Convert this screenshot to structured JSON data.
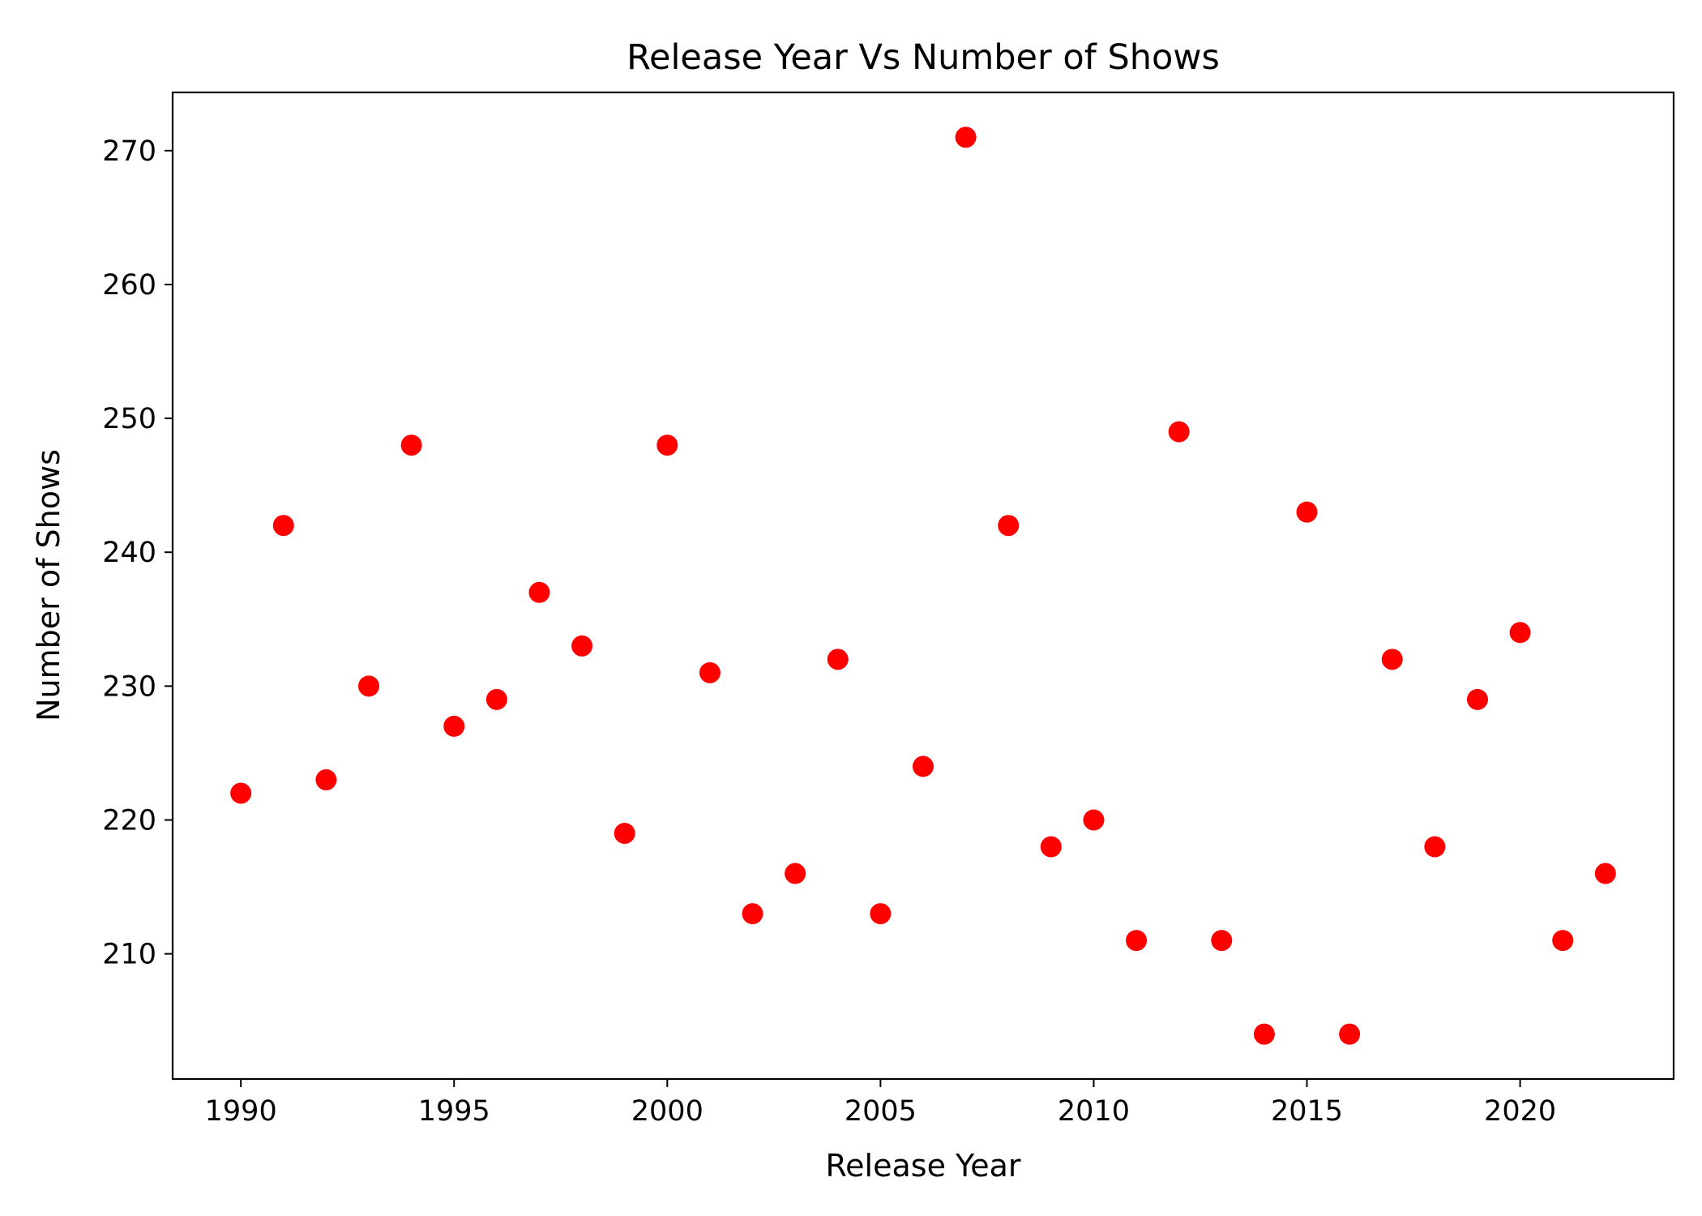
{
  "chart_data": {
    "type": "scatter",
    "title": "Release Year Vs Number of Shows",
    "xlabel": "Release Year",
    "ylabel": "Number of Shows",
    "xlim": [
      1988.4,
      2023.6
    ],
    "ylim": [
      200.65,
      274.35
    ],
    "xticks": [
      1990,
      1995,
      2000,
      2005,
      2010,
      2015,
      2020
    ],
    "yticks": [
      210,
      220,
      230,
      240,
      250,
      260,
      270
    ],
    "grid": false,
    "marker_color": "#ff0000",
    "points": [
      {
        "x": 1990,
        "y": 222
      },
      {
        "x": 1991,
        "y": 242
      },
      {
        "x": 1992,
        "y": 223
      },
      {
        "x": 1993,
        "y": 230
      },
      {
        "x": 1994,
        "y": 248
      },
      {
        "x": 1995,
        "y": 227
      },
      {
        "x": 1996,
        "y": 229
      },
      {
        "x": 1997,
        "y": 237
      },
      {
        "x": 1998,
        "y": 233
      },
      {
        "x": 1999,
        "y": 219
      },
      {
        "x": 2000,
        "y": 248
      },
      {
        "x": 2001,
        "y": 231
      },
      {
        "x": 2002,
        "y": 213
      },
      {
        "x": 2003,
        "y": 216
      },
      {
        "x": 2004,
        "y": 232
      },
      {
        "x": 2005,
        "y": 213
      },
      {
        "x": 2006,
        "y": 224
      },
      {
        "x": 2007,
        "y": 271
      },
      {
        "x": 2008,
        "y": 242
      },
      {
        "x": 2009,
        "y": 218
      },
      {
        "x": 2010,
        "y": 220
      },
      {
        "x": 2011,
        "y": 211
      },
      {
        "x": 2012,
        "y": 249
      },
      {
        "x": 2013,
        "y": 211
      },
      {
        "x": 2014,
        "y": 204
      },
      {
        "x": 2015,
        "y": 243
      },
      {
        "x": 2016,
        "y": 204
      },
      {
        "x": 2017,
        "y": 232
      },
      {
        "x": 2018,
        "y": 218
      },
      {
        "x": 2019,
        "y": 229
      },
      {
        "x": 2020,
        "y": 234
      },
      {
        "x": 2021,
        "y": 211
      },
      {
        "x": 2022,
        "y": 216
      }
    ]
  }
}
